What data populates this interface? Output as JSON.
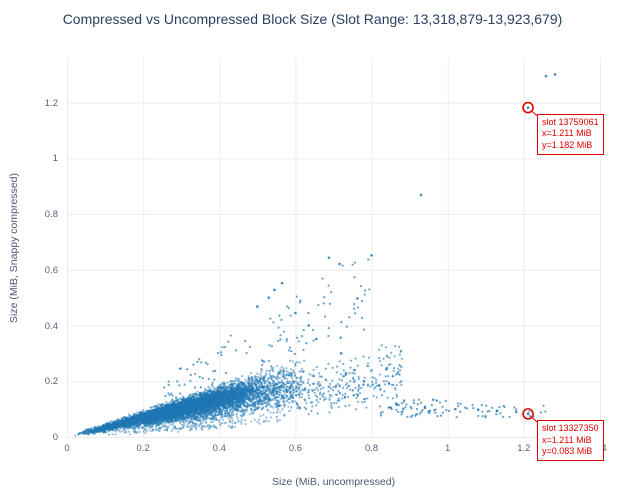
{
  "page": {
    "background": "#ffffff"
  },
  "chart_data": {
    "type": "scatter",
    "title": "Compressed vs Uncompressed Block Size (Slot Range: 13,318,879-13,923,679)",
    "xlabel": "Size (MiB, uncompressed)",
    "ylabel": "Size (MiB, Snappy compressed)",
    "xlim": [
      0,
      1.4
    ],
    "ylim": [
      0,
      1.36
    ],
    "grid": true,
    "legend": "none",
    "x_ticks": {
      "values": [
        0,
        0.2,
        0.4,
        0.6,
        0.8,
        1.0,
        1.2,
        1.4
      ],
      "labels": [
        "0",
        "0.2",
        "0.4",
        "0.6",
        "0.8",
        "1",
        "1.2",
        "1.4"
      ]
    },
    "y_ticks": {
      "values": [
        0,
        0.2,
        0.4,
        0.6,
        0.8,
        1.0,
        1.2
      ],
      "labels": [
        "0",
        "0.2",
        "0.4",
        "0.6",
        "0.8",
        "1",
        "1.2"
      ]
    },
    "colors": {
      "point": "#1f77b4",
      "annotation": "#e10000",
      "grid": "#e9edf1",
      "title": "#2a3f5f",
      "tick": "#56627a"
    },
    "annotations": [
      {
        "slot": "13759061",
        "x": 1.211,
        "y": 1.182,
        "lines": [
          "slot 13759061",
          "x=1.211 MiB",
          "y=1.182 MiB"
        ]
      },
      {
        "slot": "13327350",
        "x": 1.211,
        "y": 0.083,
        "lines": [
          "slot 13327350",
          "x=1.211 MiB",
          "y=0.083 MiB"
        ]
      }
    ],
    "highlight_points": [
      [
        1.211,
        1.182
      ],
      [
        1.211,
        0.083
      ]
    ],
    "outlier_points": [
      [
        1.258,
        1.295
      ],
      [
        1.282,
        1.301
      ],
      [
        0.93,
        0.868
      ],
      [
        0.688,
        0.643
      ],
      [
        0.716,
        0.621
      ],
      [
        0.8,
        0.652
      ],
      [
        0.565,
        0.552
      ],
      [
        0.545,
        0.528
      ],
      [
        0.53,
        0.5
      ],
      [
        0.5,
        0.468
      ],
      [
        0.6,
        0.445
      ],
      [
        0.635,
        0.4
      ],
      [
        0.655,
        0.352
      ],
      [
        0.72,
        0.3
      ],
      [
        0.755,
        0.24
      ],
      [
        0.78,
        0.2
      ],
      [
        0.82,
        0.185
      ],
      [
        0.865,
        0.12
      ],
      [
        0.94,
        0.105
      ],
      [
        1.02,
        0.1
      ],
      [
        1.08,
        0.098
      ],
      [
        1.13,
        0.094
      ],
      [
        1.18,
        0.09
      ]
    ],
    "cloud": {
      "seed": 7,
      "groups": [
        {
          "count": 5200,
          "x": [
            0.02,
            0.63
          ],
          "xdist": "tri",
          "ratio": [
            0.17,
            0.48
          ],
          "rdist": "tri",
          "alpha": 0.5
        },
        {
          "count": 2600,
          "x": [
            0.07,
            0.52
          ],
          "xdist": "tri",
          "ratio": [
            0.27,
            0.43
          ],
          "rdist": "tri",
          "alpha": 0.55
        },
        {
          "count": 330,
          "x": [
            0.55,
            0.88
          ],
          "xdist": "uni",
          "ratio": [
            0.12,
            0.4
          ],
          "rdist": "tri",
          "alpha": 0.6
        },
        {
          "count": 120,
          "x": [
            0.25,
            0.8
          ],
          "xdist": "uni",
          "ratio": [
            0.48,
            0.85
          ],
          "rdist": "uni",
          "alpha": 0.7
        },
        {
          "count": 250,
          "x": [
            0.1,
            0.6
          ],
          "xdist": "tri",
          "ratio": [
            0.08,
            0.2
          ],
          "rdist": "uni",
          "alpha": 0.45
        },
        {
          "count": 60,
          "x": [
            0.82,
            1.26
          ],
          "xdist": "uni",
          "y": [
            0.07,
            0.115
          ],
          "alpha": 0.7
        },
        {
          "count": 35,
          "x": [
            0.86,
            1.04
          ],
          "xdist": "uni",
          "y": [
            0.085,
            0.135
          ],
          "alpha": 0.7
        }
      ]
    }
  }
}
